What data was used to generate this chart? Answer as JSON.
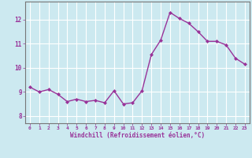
{
  "x": [
    0,
    1,
    2,
    3,
    4,
    5,
    6,
    7,
    8,
    9,
    10,
    11,
    12,
    13,
    14,
    15,
    16,
    17,
    18,
    19,
    20,
    21,
    22,
    23
  ],
  "y": [
    9.2,
    9.0,
    9.1,
    8.9,
    8.6,
    8.7,
    8.6,
    8.65,
    8.55,
    9.05,
    8.5,
    8.55,
    9.05,
    10.55,
    11.15,
    12.3,
    12.05,
    11.85,
    11.5,
    11.1,
    11.1,
    10.95,
    10.4,
    10.15
  ],
  "line_color": "#993399",
  "marker": "D",
  "marker_size": 2.0,
  "bg_color": "#cce9f0",
  "grid_color": "#ffffff",
  "xlabel": "Windchill (Refroidissement éolien,°C)",
  "xlabel_color": "#993399",
  "ylabel_ticks": [
    8,
    9,
    10,
    11,
    12
  ],
  "xtick_labels": [
    "0",
    "1",
    "2",
    "3",
    "4",
    "5",
    "6",
    "7",
    "8",
    "9",
    "10",
    "11",
    "12",
    "13",
    "14",
    "15",
    "16",
    "17",
    "18",
    "19",
    "20",
    "21",
    "22",
    "23"
  ],
  "ylim": [
    7.7,
    12.75
  ],
  "xlim": [
    -0.5,
    23.5
  ],
  "tick_color": "#993399",
  "tick_label_color": "#993399",
  "linewidth": 1.0,
  "spine_color": "#777777"
}
